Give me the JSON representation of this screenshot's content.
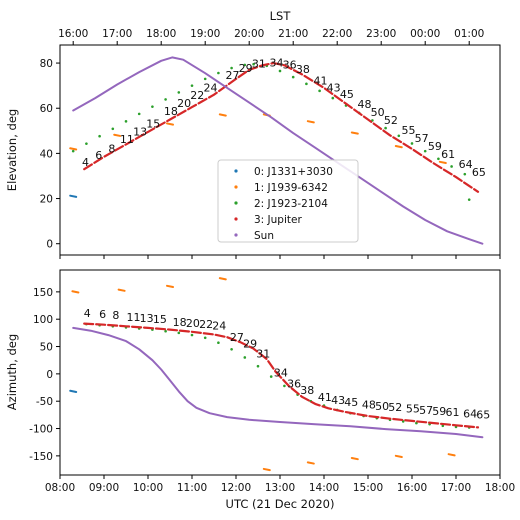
{
  "figure": {
    "xlabel": "UTC (21 Dec 2020)",
    "top_label": "LST"
  },
  "chart_data": [
    {
      "type": "scatter",
      "panel": "elevation",
      "ylabel": "Elevation, deg",
      "xlim": [
        8.0,
        18.0
      ],
      "ylim": [
        -5,
        88
      ],
      "yticks": [
        0,
        20,
        40,
        60,
        80
      ],
      "xticks": [
        8,
        9,
        10,
        11,
        12,
        13,
        14,
        15,
        16,
        17,
        18
      ],
      "xtick_labels": [
        "08:00",
        "09:00",
        "10:00",
        "11:00",
        "12:00",
        "13:00",
        "14:00",
        "15:00",
        "16:00",
        "17:00",
        "18:00"
      ],
      "top_axis": {
        "label": "LST",
        "ticks": [
          8.3,
          9.3,
          10.3,
          11.3,
          12.3,
          13.3,
          14.3,
          15.3,
          16.3,
          17.3
        ],
        "tick_labels": [
          "16:00",
          "17:00",
          "18:00",
          "19:00",
          "20:00",
          "21:00",
          "22:00",
          "23:00",
          "00:00",
          "01:00"
        ]
      },
      "grid": false,
      "legend": {
        "placement": "lower-center",
        "entries": [
          "0: J1331+3030",
          "1: J1939-6342",
          "2: J1923-2104",
          "3: Jupiter",
          "Sun"
        ]
      },
      "series": [
        {
          "name": "0: J1331+3030",
          "color": "#1f77b4",
          "style": "dash",
          "points": [
            [
              8.3,
              21.0
            ]
          ]
        },
        {
          "name": "1: J1939-6342",
          "color": "#ff7f0e",
          "style": "dash",
          "points": [
            [
              8.3,
              42.0
            ],
            [
              9.3,
              48.0
            ],
            [
              10.5,
              53.0
            ],
            [
              11.7,
              57.0
            ],
            [
              12.7,
              57.0
            ],
            [
              13.7,
              54.0
            ],
            [
              14.7,
              49.0
            ],
            [
              15.7,
              43.0
            ],
            [
              16.7,
              36.0
            ]
          ]
        },
        {
          "name": "2: J1923-2104",
          "color": "#2ca02c",
          "style": "dots",
          "points": [
            [
              8.3,
              41.0
            ],
            [
              8.6,
              44.3
            ],
            [
              8.9,
              47.6
            ],
            [
              9.2,
              50.9
            ],
            [
              9.5,
              54.2
            ],
            [
              9.8,
              57.5
            ],
            [
              10.1,
              60.7
            ],
            [
              10.4,
              63.9
            ],
            [
              10.7,
              67.0
            ],
            [
              11.0,
              70.0
            ],
            [
              11.3,
              73.0
            ],
            [
              11.6,
              75.6
            ],
            [
              11.9,
              77.8
            ],
            [
              12.2,
              79.2
            ],
            [
              12.4,
              79.5
            ],
            [
              12.7,
              78.8
            ],
            [
              13.0,
              76.5
            ],
            [
              13.3,
              73.8
            ],
            [
              13.6,
              70.8
            ],
            [
              13.9,
              67.7
            ],
            [
              14.2,
              64.5
            ],
            [
              14.5,
              61.2
            ],
            [
              14.8,
              57.9
            ],
            [
              15.1,
              54.6
            ],
            [
              15.4,
              51.2
            ],
            [
              15.7,
              47.8
            ],
            [
              16.0,
              44.4
            ],
            [
              16.3,
              41.0
            ],
            [
              16.6,
              37.6
            ],
            [
              16.9,
              34.2
            ],
            [
              17.2,
              30.8
            ],
            [
              17.3,
              19.5
            ]
          ]
        },
        {
          "name": "3: Jupiter",
          "color": "#d62728",
          "style": "thick",
          "x": [
            8.55,
            9.0,
            9.5,
            10.0,
            10.5,
            11.0,
            11.5,
            12.0,
            12.3,
            12.6,
            12.85,
            13.1,
            13.5,
            14.0,
            14.5,
            15.0,
            15.5,
            16.0,
            16.5,
            17.0,
            17.5
          ],
          "y": [
            33.0,
            38.5,
            44.0,
            49.5,
            55.0,
            60.5,
            66.0,
            73.0,
            77.0,
            79.0,
            80.0,
            79.0,
            75.0,
            69.0,
            62.0,
            55.0,
            48.0,
            42.0,
            35.5,
            29.5,
            23.0
          ]
        },
        {
          "name": "Sun",
          "color": "#9467bd",
          "style": "line",
          "x": [
            8.3,
            8.8,
            9.3,
            9.8,
            10.3,
            10.55,
            10.8,
            11.3,
            11.8,
            12.3,
            12.8,
            13.3,
            13.8,
            14.3,
            14.8,
            15.3,
            15.8,
            16.3,
            16.8,
            17.3,
            17.6
          ],
          "y": [
            59.0,
            64.5,
            70.5,
            76.0,
            81.0,
            82.5,
            81.5,
            75.5,
            69.0,
            62.5,
            56.0,
            49.0,
            42.5,
            36.0,
            29.5,
            23.0,
            16.5,
            10.5,
            5.5,
            2.0,
            0.0
          ]
        }
      ],
      "annotations": [
        {
          "text": "4",
          "x": 8.58,
          "y": 34.5
        },
        {
          "text": "6",
          "x": 8.88,
          "y": 37.5
        },
        {
          "text": "8",
          "x": 9.18,
          "y": 40.5
        },
        {
          "text": "11",
          "x": 9.52,
          "y": 44.5
        },
        {
          "text": "13",
          "x": 9.82,
          "y": 48.0
        },
        {
          "text": "15",
          "x": 10.12,
          "y": 51.5
        },
        {
          "text": "18",
          "x": 10.52,
          "y": 57.0
        },
        {
          "text": "20",
          "x": 10.82,
          "y": 60.5
        },
        {
          "text": "22",
          "x": 11.12,
          "y": 64.0
        },
        {
          "text": "24",
          "x": 11.42,
          "y": 67.5
        },
        {
          "text": "27",
          "x": 11.92,
          "y": 73.0
        },
        {
          "text": "29",
          "x": 12.22,
          "y": 76.0
        },
        {
          "text": "31",
          "x": 12.52,
          "y": 78.0
        },
        {
          "text": "34",
          "x": 12.92,
          "y": 78.5
        },
        {
          "text": "36",
          "x": 13.22,
          "y": 77.5
        },
        {
          "text": "38",
          "x": 13.52,
          "y": 75.5
        },
        {
          "text": "41",
          "x": 13.92,
          "y": 70.5
        },
        {
          "text": "43",
          "x": 14.22,
          "y": 67.5
        },
        {
          "text": "45",
          "x": 14.52,
          "y": 64.5
        },
        {
          "text": "48",
          "x": 14.92,
          "y": 60.0
        },
        {
          "text": "50",
          "x": 15.22,
          "y": 56.5
        },
        {
          "text": "52",
          "x": 15.52,
          "y": 53.0
        },
        {
          "text": "55",
          "x": 15.92,
          "y": 48.5
        },
        {
          "text": "57",
          "x": 16.22,
          "y": 45.0
        },
        {
          "text": "59",
          "x": 16.52,
          "y": 41.5
        },
        {
          "text": "61",
          "x": 16.82,
          "y": 38.0
        },
        {
          "text": "64",
          "x": 17.22,
          "y": 33.5
        },
        {
          "text": "65",
          "x": 17.52,
          "y": 30.0
        }
      ]
    },
    {
      "type": "scatter",
      "panel": "azimuth",
      "ylabel": "Azimuth, deg",
      "xlabel": "UTC (21 Dec 2020)",
      "xlim": [
        8.0,
        18.0
      ],
      "ylim": [
        -185,
        190
      ],
      "yticks": [
        -150,
        -100,
        -50,
        0,
        50,
        100,
        150
      ],
      "xticks": [
        8,
        9,
        10,
        11,
        12,
        13,
        14,
        15,
        16,
        17,
        18
      ],
      "xtick_labels": [
        "08:00",
        "09:00",
        "10:00",
        "11:00",
        "12:00",
        "13:00",
        "14:00",
        "15:00",
        "16:00",
        "17:00",
        "18:00"
      ],
      "grid": false,
      "series": [
        {
          "name": "0: J1331+3030",
          "color": "#1f77b4",
          "style": "dash",
          "points": [
            [
              8.3,
              -32.0
            ]
          ]
        },
        {
          "name": "1: J1939-6342",
          "color": "#ff7f0e",
          "style": "dash",
          "points": [
            [
              8.35,
              150.0
            ],
            [
              9.4,
              153.0
            ],
            [
              10.5,
              160.0
            ],
            [
              11.7,
              174.0
            ],
            [
              12.7,
              -175.0
            ],
            [
              13.7,
              -163.0
            ],
            [
              14.7,
              -155.0
            ],
            [
              15.7,
              -151.0
            ],
            [
              16.9,
              -148.0
            ]
          ]
        },
        {
          "name": "2: J1923-2104",
          "color": "#2ca02c",
          "style": "dots",
          "points": [
            [
              8.6,
              91.0
            ],
            [
              8.9,
              89.0
            ],
            [
              9.2,
              87.0
            ],
            [
              9.5,
              85.0
            ],
            [
              9.8,
              83.0
            ],
            [
              10.1,
              81.0
            ],
            [
              10.4,
              78.0
            ],
            [
              10.7,
              75.0
            ],
            [
              11.0,
              71.0
            ],
            [
              11.3,
              66.0
            ],
            [
              11.6,
              57.0
            ],
            [
              11.9,
              45.0
            ],
            [
              12.2,
              30.0
            ],
            [
              12.5,
              14.0
            ],
            [
              12.8,
              -5.0
            ],
            [
              13.1,
              -22.0
            ],
            [
              13.4,
              -38.0
            ],
            [
              13.7,
              -50.0
            ],
            [
              14.0,
              -58.0
            ],
            [
              14.3,
              -66.0
            ],
            [
              14.6,
              -72.0
            ],
            [
              14.9,
              -77.0
            ],
            [
              15.2,
              -81.0
            ],
            [
              15.5,
              -84.0
            ],
            [
              15.8,
              -87.0
            ],
            [
              16.1,
              -90.0
            ],
            [
              16.4,
              -92.0
            ],
            [
              16.7,
              -95.0
            ],
            [
              17.0,
              -97.0
            ],
            [
              17.3,
              -98.0
            ]
          ]
        },
        {
          "name": "3: Jupiter",
          "color": "#d62728",
          "style": "thick",
          "x": [
            8.55,
            9.0,
            9.5,
            10.0,
            10.5,
            11.0,
            11.5,
            11.8,
            12.1,
            12.4,
            12.7,
            12.9,
            13.2,
            13.5,
            13.8,
            14.1,
            14.5,
            15.0,
            15.5,
            16.0,
            16.5,
            17.0,
            17.5
          ],
          "y": [
            92.0,
            90.0,
            87.0,
            84.0,
            81.0,
            77.0,
            72.0,
            67.0,
            58.0,
            46.0,
            27.0,
            4.0,
            -22.0,
            -42.0,
            -55.0,
            -63.0,
            -70.0,
            -77.0,
            -82.0,
            -86.0,
            -90.0,
            -94.0,
            -98.0
          ]
        },
        {
          "name": "Sun",
          "color": "#9467bd",
          "style": "line",
          "x": [
            8.3,
            8.7,
            9.1,
            9.5,
            9.8,
            10.1,
            10.3,
            10.5,
            10.7,
            10.9,
            11.1,
            11.4,
            11.8,
            12.3,
            13.0,
            13.8,
            14.6,
            15.4,
            16.2,
            17.0,
            17.6
          ],
          "y": [
            84.0,
            79.0,
            71.0,
            60.0,
            45.0,
            25.0,
            8.0,
            -12.0,
            -32.0,
            -50.0,
            -62.0,
            -72.0,
            -79.0,
            -84.0,
            -88.0,
            -92.0,
            -96.0,
            -101.0,
            -105.0,
            -110.0,
            -116.0
          ]
        }
      ],
      "annotations": [
        {
          "text": "4",
          "x": 8.62,
          "y": 104.0
        },
        {
          "text": "6",
          "x": 8.97,
          "y": 102.0
        },
        {
          "text": "8",
          "x": 9.27,
          "y": 100.0
        },
        {
          "text": "11",
          "x": 9.67,
          "y": 97.0
        },
        {
          "text": "13",
          "x": 9.97,
          "y": 95.0
        },
        {
          "text": "15",
          "x": 10.27,
          "y": 93.0
        },
        {
          "text": "18",
          "x": 10.72,
          "y": 88.0
        },
        {
          "text": "20",
          "x": 11.02,
          "y": 86.0
        },
        {
          "text": "22",
          "x": 11.32,
          "y": 84.0
        },
        {
          "text": "24",
          "x": 11.62,
          "y": 81.0
        },
        {
          "text": "27",
          "x": 12.02,
          "y": 60.0
        },
        {
          "text": "29",
          "x": 12.32,
          "y": 48.0
        },
        {
          "text": "31",
          "x": 12.62,
          "y": 30.0
        },
        {
          "text": "34",
          "x": 13.02,
          "y": -5.0
        },
        {
          "text": "36",
          "x": 13.32,
          "y": -25.0
        },
        {
          "text": "38",
          "x": 13.62,
          "y": -37.0
        },
        {
          "text": "41",
          "x": 14.02,
          "y": -50.0
        },
        {
          "text": "43",
          "x": 14.32,
          "y": -55.0
        },
        {
          "text": "45",
          "x": 14.62,
          "y": -59.0
        },
        {
          "text": "48",
          "x": 15.02,
          "y": -63.0
        },
        {
          "text": "50",
          "x": 15.32,
          "y": -66.0
        },
        {
          "text": "52",
          "x": 15.62,
          "y": -68.0
        },
        {
          "text": "55",
          "x": 16.02,
          "y": -71.0
        },
        {
          "text": "57",
          "x": 16.32,
          "y": -73.0
        },
        {
          "text": "59",
          "x": 16.62,
          "y": -75.0
        },
        {
          "text": "61",
          "x": 16.92,
          "y": -77.0
        },
        {
          "text": "64",
          "x": 17.32,
          "y": -80.0
        },
        {
          "text": "65",
          "x": 17.62,
          "y": -82.0
        }
      ]
    }
  ]
}
